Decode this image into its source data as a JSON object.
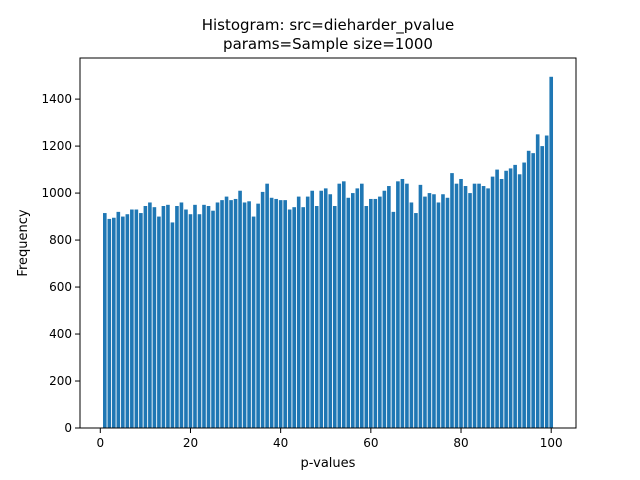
{
  "chart_data": {
    "type": "bar",
    "title_line1": "Histogram: src=dieharder_pvalue",
    "title_line2": "params=Sample size=1000",
    "xlabel": "p-values",
    "ylabel": "Frequency",
    "xlim": [
      -4.5,
      105.5
    ],
    "ylim": [
      0,
      1575
    ],
    "xticks": [
      0,
      20,
      40,
      60,
      80,
      100
    ],
    "yticks": [
      0,
      200,
      400,
      600,
      800,
      1000,
      1200,
      1400
    ],
    "bar_color": "#1f77b4",
    "grid": false,
    "x": [
      1,
      2,
      3,
      4,
      5,
      6,
      7,
      8,
      9,
      10,
      11,
      12,
      13,
      14,
      15,
      16,
      17,
      18,
      19,
      20,
      21,
      22,
      23,
      24,
      25,
      26,
      27,
      28,
      29,
      30,
      31,
      32,
      33,
      34,
      35,
      36,
      37,
      38,
      39,
      40,
      41,
      42,
      43,
      44,
      45,
      46,
      47,
      48,
      49,
      50,
      51,
      52,
      53,
      54,
      55,
      56,
      57,
      58,
      59,
      60,
      61,
      62,
      63,
      64,
      65,
      66,
      67,
      68,
      69,
      70,
      71,
      72,
      73,
      74,
      75,
      76,
      77,
      78,
      79,
      80,
      81,
      82,
      83,
      84,
      85,
      86,
      87,
      88,
      89,
      90,
      91,
      92,
      93,
      94,
      95,
      96,
      97,
      98,
      99,
      100
    ],
    "values": [
      915,
      890,
      895,
      920,
      900,
      910,
      930,
      930,
      915,
      945,
      960,
      940,
      900,
      945,
      950,
      875,
      945,
      960,
      930,
      910,
      950,
      910,
      950,
      945,
      925,
      960,
      970,
      985,
      970,
      975,
      1010,
      960,
      965,
      900,
      955,
      1005,
      1040,
      980,
      975,
      970,
      970,
      930,
      940,
      985,
      940,
      985,
      1010,
      945,
      1010,
      1020,
      995,
      945,
      1040,
      1050,
      980,
      1000,
      1020,
      1040,
      945,
      975,
      975,
      985,
      1010,
      1030,
      920,
      1050,
      1060,
      1040,
      960,
      915,
      1035,
      985,
      1000,
      995,
      960,
      995,
      980,
      1085,
      1040,
      1060,
      1030,
      1000,
      1040,
      1040,
      1030,
      1020,
      1070,
      1100,
      1060,
      1095,
      1105,
      1120,
      1080,
      1130,
      1180,
      1170,
      1250,
      1200,
      1245,
      1495
    ]
  }
}
